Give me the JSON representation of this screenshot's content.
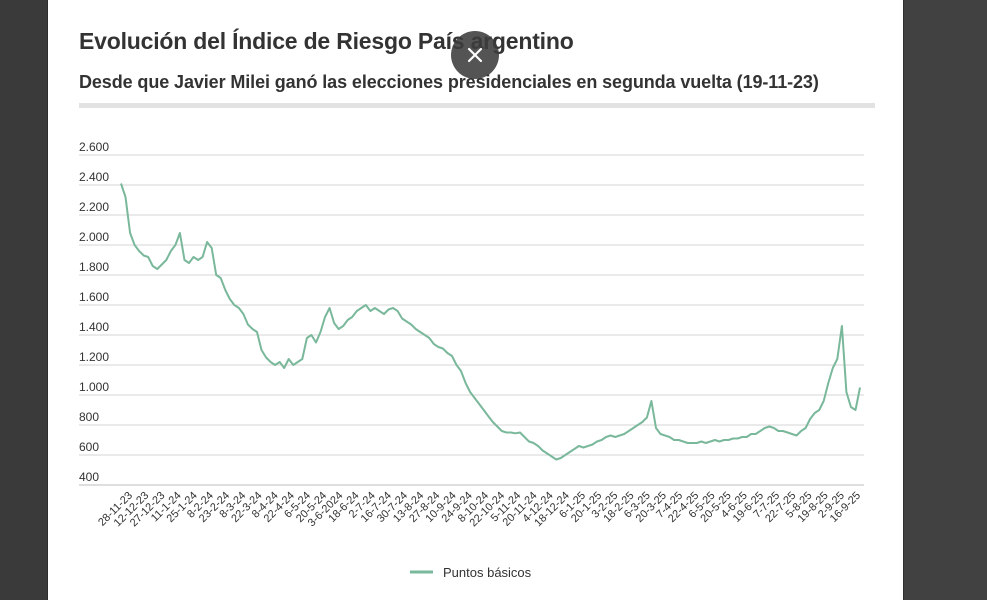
{
  "chart_data": {
    "type": "line",
    "title": "Evolución del Índice de Riesgo País argentino",
    "subtitle": "Desde que Javier Milei ganó las elecciones presidenciales en segunda vuelta (19-11-23)",
    "xlabel": "",
    "ylabel": "",
    "ylim": [
      400,
      2600
    ],
    "y_ticks": [
      "400",
      "600",
      "800",
      "1.000",
      "1.200",
      "1.400",
      "1.600",
      "1.800",
      "2.000",
      "2.200",
      "2.400",
      "2.600"
    ],
    "x_ticks": [
      "28-11-23",
      "12-12-23",
      "27-12-23",
      "11-1-24",
      "25-1-24",
      "8-2-24",
      "23-2-24",
      "8-3-24",
      "22-3-24",
      "8-4-24",
      "22-4-24",
      "6-5-24",
      "20-5-24",
      "3-6-2024",
      "18-6-24",
      "2-7-24",
      "16-7-24",
      "30-7-24",
      "13-8-24",
      "27-8-24",
      "10-9-24",
      "24-9-24",
      "8-10-24",
      "22-10-24",
      "5-11-24",
      "20-11-24",
      "4-12-24",
      "18-12-24",
      "6-1-25",
      "20-1-25",
      "3-2-25",
      "18-2-25",
      "6-3-25",
      "20-3-25",
      "7-4-25",
      "22-4-25",
      "6-5-25",
      "20-5-25",
      "4-6-25",
      "19-6-25",
      "7-7-25",
      "22-7-25",
      "5-8-25",
      "19-8-25",
      "2-9-25",
      "16-9-25"
    ],
    "grid": true,
    "legend": "bottom-center",
    "series": [
      {
        "name": "Puntos básicos",
        "color": "#7ab89b",
        "values": [
          2410,
          2320,
          2080,
          2000,
          1960,
          1930,
          1920,
          1860,
          1840,
          1870,
          1900,
          1960,
          2000,
          2080,
          1900,
          1880,
          1920,
          1900,
          1920,
          2020,
          1980,
          1800,
          1780,
          1700,
          1640,
          1600,
          1580,
          1540,
          1470,
          1440,
          1420,
          1300,
          1250,
          1220,
          1200,
          1220,
          1180,
          1240,
          1200,
          1220,
          1240,
          1380,
          1400,
          1350,
          1420,
          1520,
          1580,
          1480,
          1440,
          1460,
          1500,
          1520,
          1560,
          1580,
          1600,
          1560,
          1580,
          1560,
          1540,
          1570,
          1580,
          1560,
          1510,
          1490,
          1470,
          1440,
          1420,
          1400,
          1380,
          1340,
          1320,
          1310,
          1280,
          1260,
          1200,
          1160,
          1080,
          1020,
          980,
          940,
          900,
          860,
          820,
          790,
          760,
          750,
          750,
          745,
          750,
          720,
          690,
          680,
          660,
          630,
          610,
          590,
          570,
          580,
          600,
          620,
          640,
          660,
          650,
          660,
          670,
          690,
          700,
          720,
          730,
          720,
          730,
          740,
          760,
          780,
          800,
          820,
          850,
          960,
          780,
          740,
          730,
          720,
          700,
          700,
          690,
          680,
          680,
          680,
          690,
          680,
          690,
          700,
          690,
          700,
          700,
          710,
          710,
          720,
          720,
          740,
          740,
          760,
          780,
          790,
          780,
          760,
          760,
          750,
          740,
          730,
          760,
          780,
          840,
          880,
          900,
          960,
          1080,
          1180,
          1240,
          1460,
          1020,
          920,
          900,
          1050
        ]
      }
    ]
  },
  "legend": {
    "label": "Puntos básicos"
  },
  "overlay": {
    "close_icon": "close-icon"
  }
}
